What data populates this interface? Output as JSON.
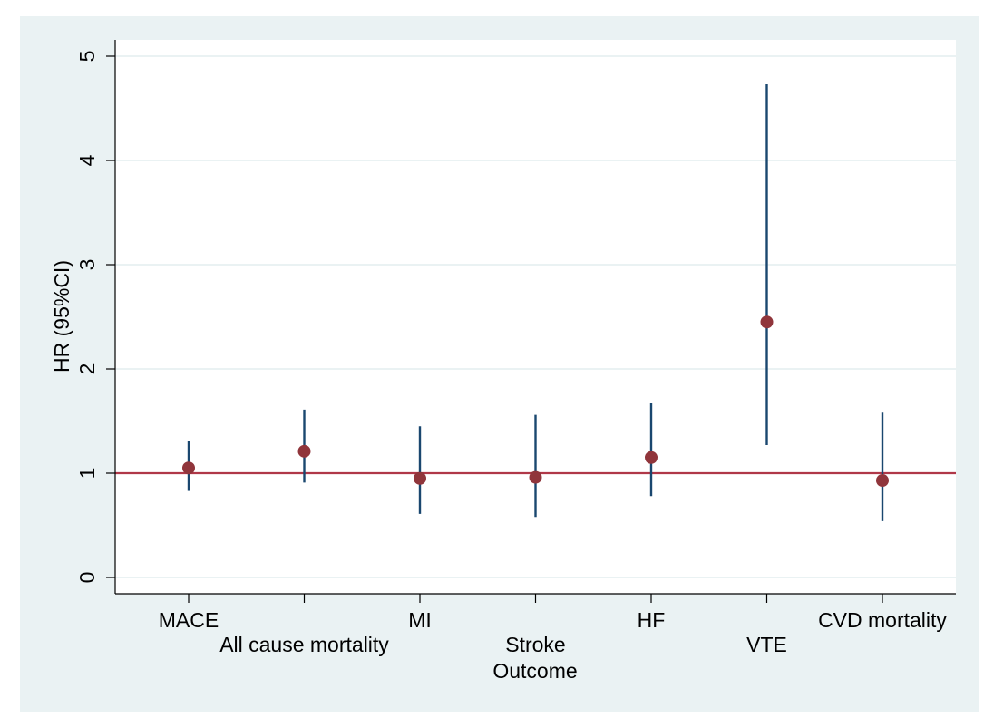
{
  "chart_data": {
    "type": "scatter",
    "subtype": "point-estimate-with-confidence-intervals",
    "title": "",
    "xlabel": "Outcome",
    "ylabel": "HR (95%CI)",
    "ylim": [
      -0.15,
      5.15
    ],
    "yticks": [
      "0",
      "1",
      "2",
      "3",
      "4",
      "5"
    ],
    "grid": true,
    "reference_line": {
      "y": 1,
      "color": "#b03848"
    },
    "categories": [
      "MACE",
      "All cause mortality",
      "MI",
      "Stroke",
      "HF",
      "VTE",
      "CVD mortality"
    ],
    "series": [
      {
        "hr": [
          1.05,
          1.21,
          0.95,
          0.96,
          1.15,
          2.45,
          0.93
        ],
        "lower": [
          0.83,
          0.91,
          0.61,
          0.58,
          0.78,
          1.27,
          0.54
        ],
        "upper": [
          1.31,
          1.61,
          1.45,
          1.56,
          1.67,
          4.73,
          1.58
        ]
      }
    ],
    "colors": {
      "outer_background": "#eaf2f3",
      "plot_background": "#ffffff",
      "gridline": "#eaf2f3",
      "ci_line": "#1a476f",
      "point": "#90353b",
      "axis": "#000000"
    }
  }
}
